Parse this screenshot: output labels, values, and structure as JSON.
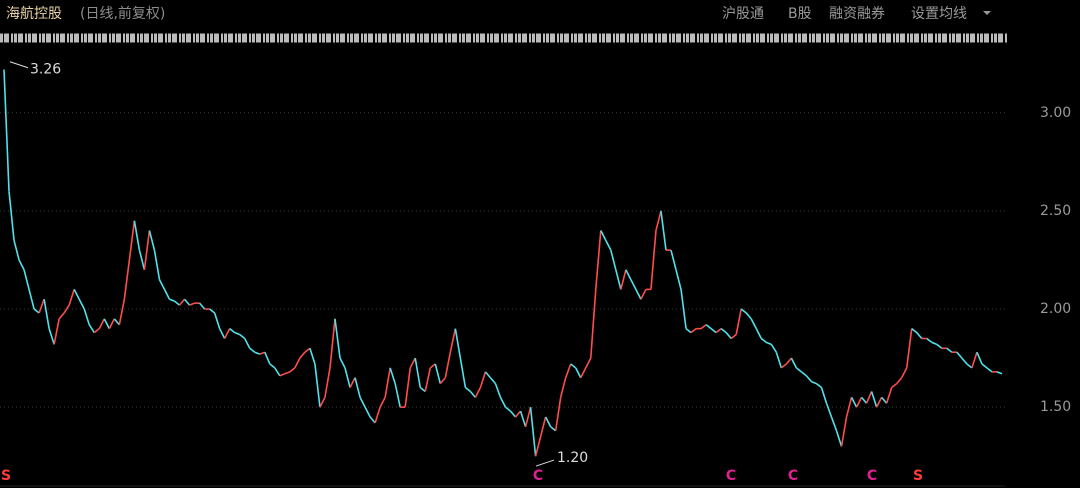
{
  "header": {
    "title": "海航控股",
    "subtitle": "(日线,前复权)",
    "menu": [
      "沪股通",
      "B股",
      "融资融券",
      "设置均线"
    ]
  },
  "chart_data": {
    "type": "line",
    "up_color": "#ff4d4d",
    "down_color": "#4fe3ec",
    "values": [
      3.22,
      2.6,
      2.35,
      2.25,
      2.2,
      2.1,
      2.0,
      1.98,
      2.05,
      1.9,
      1.82,
      1.95,
      1.98,
      2.02,
      2.1,
      2.05,
      2.0,
      1.92,
      1.88,
      1.9,
      1.95,
      1.9,
      1.95,
      1.92,
      2.05,
      2.25,
      2.45,
      2.3,
      2.2,
      2.4,
      2.3,
      2.15,
      2.1,
      2.05,
      2.04,
      2.02,
      2.05,
      2.02,
      2.03,
      2.03,
      2.0,
      2.0,
      1.98,
      1.9,
      1.85,
      1.9,
      1.88,
      1.87,
      1.85,
      1.8,
      1.78,
      1.77,
      1.78,
      1.72,
      1.7,
      1.66,
      1.67,
      1.68,
      1.7,
      1.75,
      1.78,
      1.8,
      1.72,
      1.5,
      1.55,
      1.7,
      1.95,
      1.75,
      1.7,
      1.6,
      1.65,
      1.55,
      1.5,
      1.45,
      1.42,
      1.5,
      1.55,
      1.7,
      1.62,
      1.5,
      1.5,
      1.7,
      1.75,
      1.6,
      1.58,
      1.7,
      1.72,
      1.62,
      1.65,
      1.78,
      1.9,
      1.75,
      1.6,
      1.58,
      1.55,
      1.6,
      1.68,
      1.65,
      1.62,
      1.55,
      1.5,
      1.48,
      1.45,
      1.48,
      1.4,
      1.5,
      1.25,
      1.35,
      1.45,
      1.4,
      1.38,
      1.55,
      1.65,
      1.72,
      1.7,
      1.65,
      1.7,
      1.75,
      2.1,
      2.4,
      2.35,
      2.3,
      2.2,
      2.1,
      2.2,
      2.15,
      2.1,
      2.05,
      2.1,
      2.1,
      2.4,
      2.5,
      2.3,
      2.3,
      2.2,
      2.1,
      1.9,
      1.88,
      1.9,
      1.9,
      1.92,
      1.9,
      1.88,
      1.9,
      1.88,
      1.85,
      1.87,
      2.0,
      1.98,
      1.95,
      1.9,
      1.85,
      1.83,
      1.82,
      1.78,
      1.7,
      1.72,
      1.75,
      1.7,
      1.68,
      1.66,
      1.63,
      1.62,
      1.6,
      1.52,
      1.45,
      1.38,
      1.3,
      1.45,
      1.55,
      1.5,
      1.55,
      1.52,
      1.58,
      1.5,
      1.55,
      1.52,
      1.6,
      1.62,
      1.65,
      1.7,
      1.9,
      1.88,
      1.85,
      1.85,
      1.83,
      1.82,
      1.8,
      1.8,
      1.78,
      1.78,
      1.75,
      1.72,
      1.7,
      1.78,
      1.72,
      1.7,
      1.68,
      1.68,
      1.67
    ],
    "ylim": [
      1.19,
      3.33
    ],
    "yticks": [
      {
        "value": 1.5,
        "label": "1.50"
      },
      {
        "value": 2.0,
        "label": "2.00"
      },
      {
        "value": 2.5,
        "label": "2.50"
      },
      {
        "value": 3.0,
        "label": "3.00"
      }
    ],
    "grid": true,
    "high": 3.26,
    "low": {
      "value": 1.2,
      "label": "1.20"
    },
    "events": [
      "S",
      "C",
      "C",
      "C",
      "C",
      "S"
    ]
  }
}
